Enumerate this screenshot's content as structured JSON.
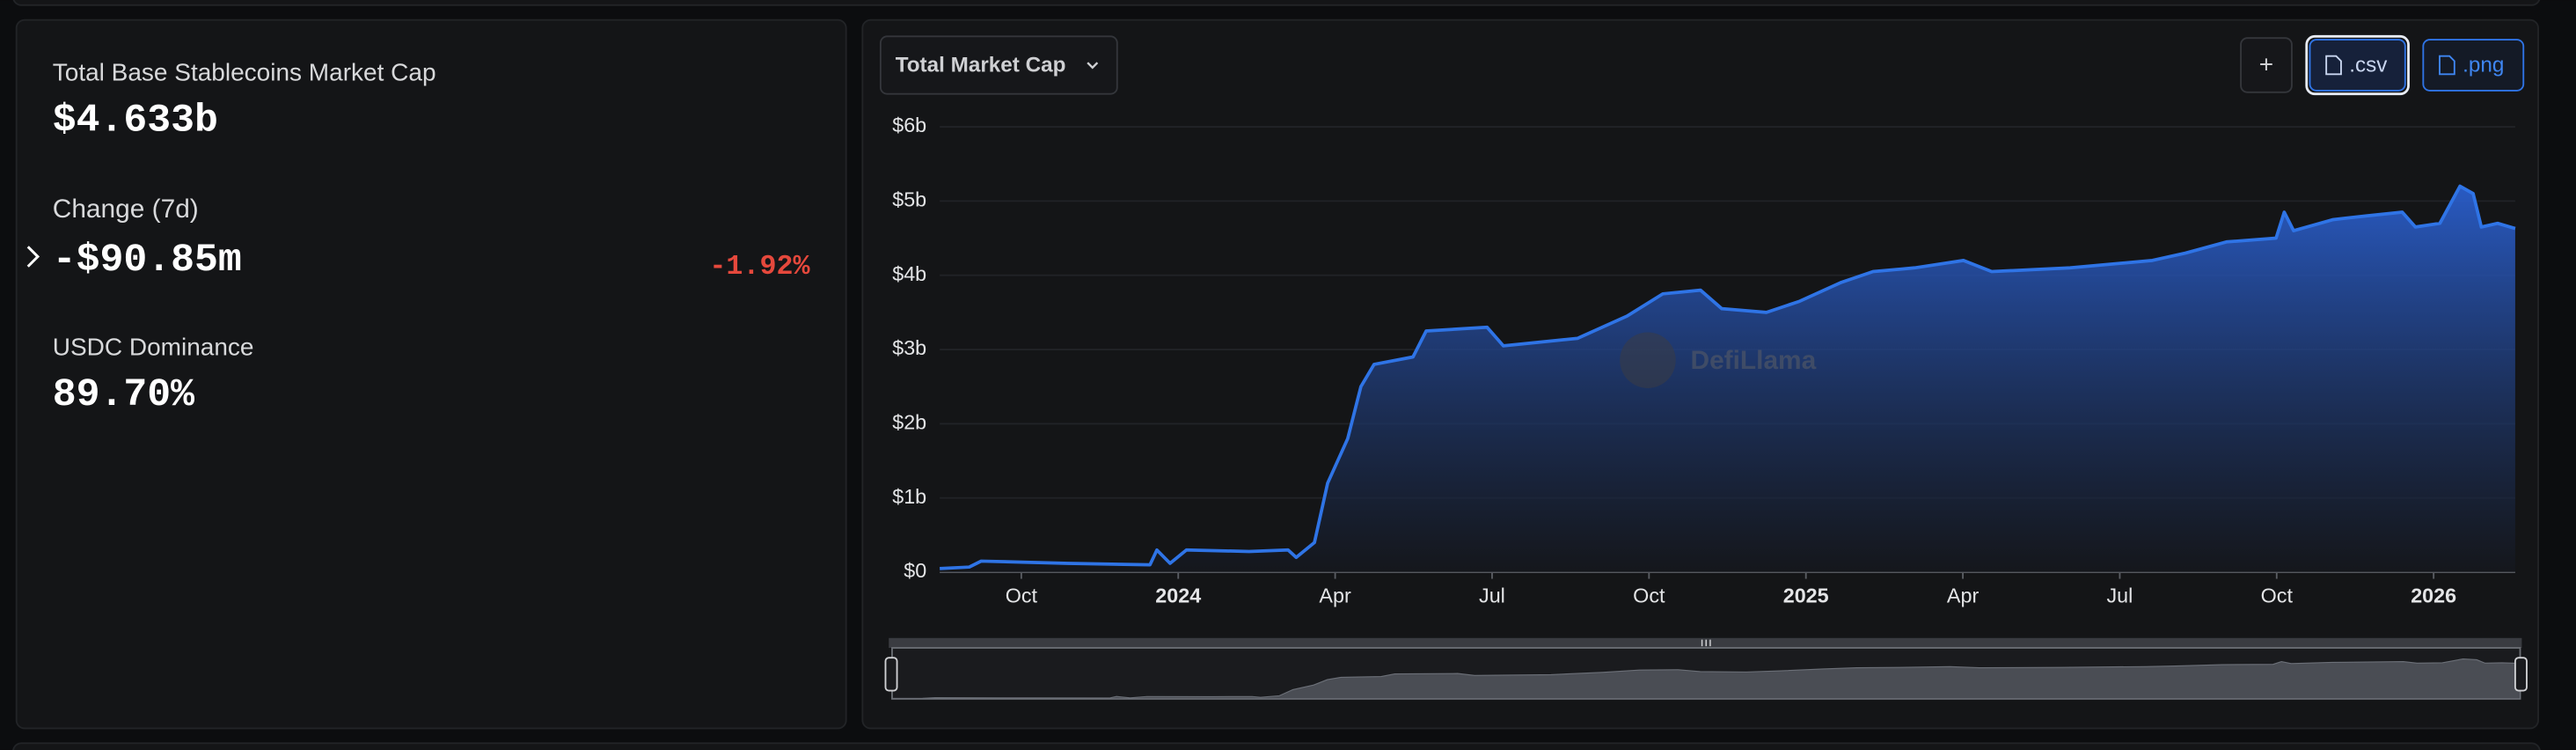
{
  "stats": {
    "market_cap_label": "Total Base Stablecoins Market Cap",
    "market_cap_value": "$4.633b",
    "change_label": "Change (7d)",
    "change_value": "-$90.85m",
    "change_percent": "-1.92%",
    "dominance_label": "USDC Dominance",
    "dominance_value": "89.70%"
  },
  "controls": {
    "dropdown": "Total Market Cap",
    "add_button": "+",
    "csv_button": ".csv",
    "png_button": ".png"
  },
  "watermark": "DefiLlama",
  "chart_data": {
    "type": "area",
    "color": "#2f74e6",
    "grid": true,
    "x": [
      2023.62,
      2023.667,
      2023.686,
      2023.825,
      2023.955,
      2023.966,
      2023.987,
      2024.013,
      2024.113,
      2024.175,
      2024.188,
      2024.217,
      2024.238,
      2024.27,
      2024.291,
      2024.312,
      2024.374,
      2024.395,
      2024.492,
      2024.518,
      2024.636,
      2024.715,
      2024.772,
      2024.832,
      2024.866,
      2024.937,
      2024.99,
      2025.055,
      2025.107,
      2025.173,
      2025.251,
      2025.296,
      2025.421,
      2025.552,
      2025.605,
      2025.67,
      2025.749,
      2025.762,
      2025.777,
      2025.84,
      2025.893,
      2025.95,
      2025.971,
      2026.01,
      2026.042,
      2026.063,
      2026.076,
      2026.102,
      2026.13
    ],
    "series": [
      {
        "name": "Total Market Cap",
        "color": "#2f74e6",
        "values": [
          0.05,
          0.07,
          0.15,
          0.12,
          0.1,
          0.3,
          0.12,
          0.3,
          0.28,
          0.3,
          0.2,
          0.4,
          1.2,
          1.8,
          2.5,
          2.8,
          2.9,
          3.25,
          3.3,
          3.05,
          3.15,
          3.45,
          3.75,
          3.8,
          3.55,
          3.5,
          3.65,
          3.9,
          4.05,
          4.1,
          4.2,
          4.05,
          4.1,
          4.2,
          4.3,
          4.45,
          4.5,
          4.85,
          4.6,
          4.75,
          4.8,
          4.85,
          4.65,
          4.7,
          5.2,
          5.1,
          4.65,
          4.7,
          4.63
        ]
      }
    ],
    "xlim": [
      2023.62,
      2026.13
    ],
    "xticks": [
      {
        "value": 2023.75,
        "label": "Oct"
      },
      2024,
      {
        "value": 2024.25,
        "label": "Apr"
      },
      {
        "value": 2024.5,
        "label": "Jul"
      },
      {
        "value": 2024.75,
        "label": "Oct"
      },
      2025,
      {
        "value": 2025.25,
        "label": "Apr"
      },
      {
        "value": 2025.5,
        "label": "Jul"
      },
      {
        "value": 2025.75,
        "label": "Oct"
      },
      2026
    ],
    "ylim": [
      0,
      6
    ],
    "yticks": [
      {
        "value": 0,
        "label": "$0"
      },
      {
        "value": 1,
        "label": "$1b"
      },
      {
        "value": 2,
        "label": "$2b"
      },
      {
        "value": 3,
        "label": "$3b"
      },
      {
        "value": 4,
        "label": "$4b"
      },
      {
        "value": 5,
        "label": "$5b"
      },
      {
        "value": 6,
        "label": "$6b"
      }
    ]
  }
}
